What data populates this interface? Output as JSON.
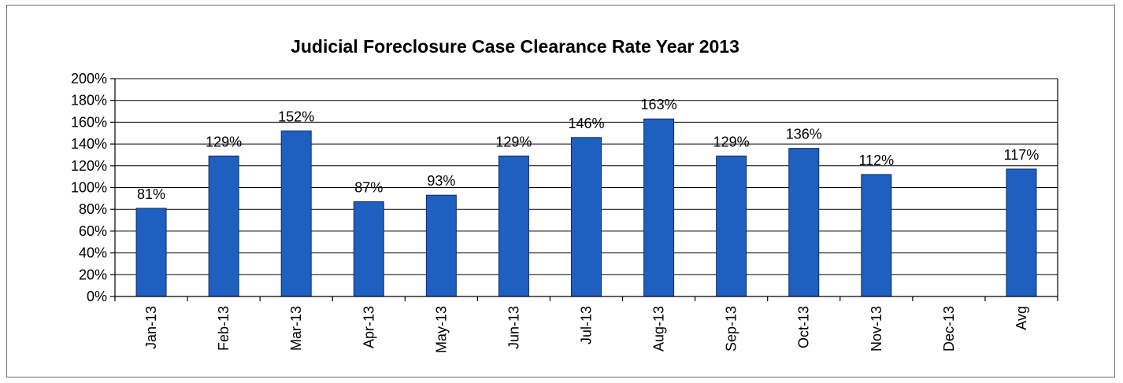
{
  "chart_data": {
    "type": "bar",
    "title": "Judicial  Foreclosure Case Clearance Rate Year 2013",
    "xlabel": "",
    "ylabel": "",
    "categories": [
      "Jan-13",
      "Feb-13",
      "Mar-13",
      "Apr-13",
      "May-13",
      "Jun-13",
      "Jul-13",
      "Aug-13",
      "Sep-13",
      "Oct-13",
      "Nov-13",
      "Dec-13",
      "Avg"
    ],
    "values": [
      81,
      129,
      152,
      87,
      93,
      129,
      146,
      163,
      129,
      136,
      112,
      null,
      117
    ],
    "data_labels": [
      "81%",
      "129%",
      "152%",
      "87%",
      "93%",
      "129%",
      "146%",
      "163%",
      "129%",
      "136%",
      "112%",
      "",
      "117%"
    ],
    "ylim": [
      0,
      200
    ],
    "yticks": [
      0,
      20,
      40,
      60,
      80,
      100,
      120,
      140,
      160,
      180,
      200
    ],
    "ytick_labels": [
      "0%",
      "20%",
      "40%",
      "60%",
      "80%",
      "100%",
      "120%",
      "140%",
      "160%",
      "180%",
      "200%"
    ],
    "grid": true,
    "legend": "none",
    "colors": {
      "bar": "#1f5fbf",
      "bar_edge": "#0b2e66"
    }
  }
}
